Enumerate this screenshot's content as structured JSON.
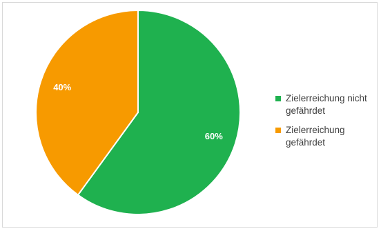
{
  "chart_data": {
    "type": "pie",
    "title": "",
    "slices": [
      {
        "name": "Zielerreichung nicht gefährdet",
        "value": 60,
        "label": "60%",
        "color": "#1fb14f"
      },
      {
        "name": "Zielerreichung gefährdet",
        "value": 40,
        "label": "40%",
        "color": "#f79a00"
      }
    ],
    "start_angle_deg": 0,
    "direction": "clockwise",
    "legend_position": "right",
    "legend": [
      {
        "text": "Zielerreichung nicht gefährdet",
        "lines": [
          "Zielerreichung nicht",
          "gefährdet"
        ],
        "color": "#1fb14f"
      },
      {
        "text": "Zielerreichung gefährdet",
        "lines": [
          "Zielerreichung",
          "gefährdet"
        ],
        "color": "#f79a00"
      }
    ]
  }
}
